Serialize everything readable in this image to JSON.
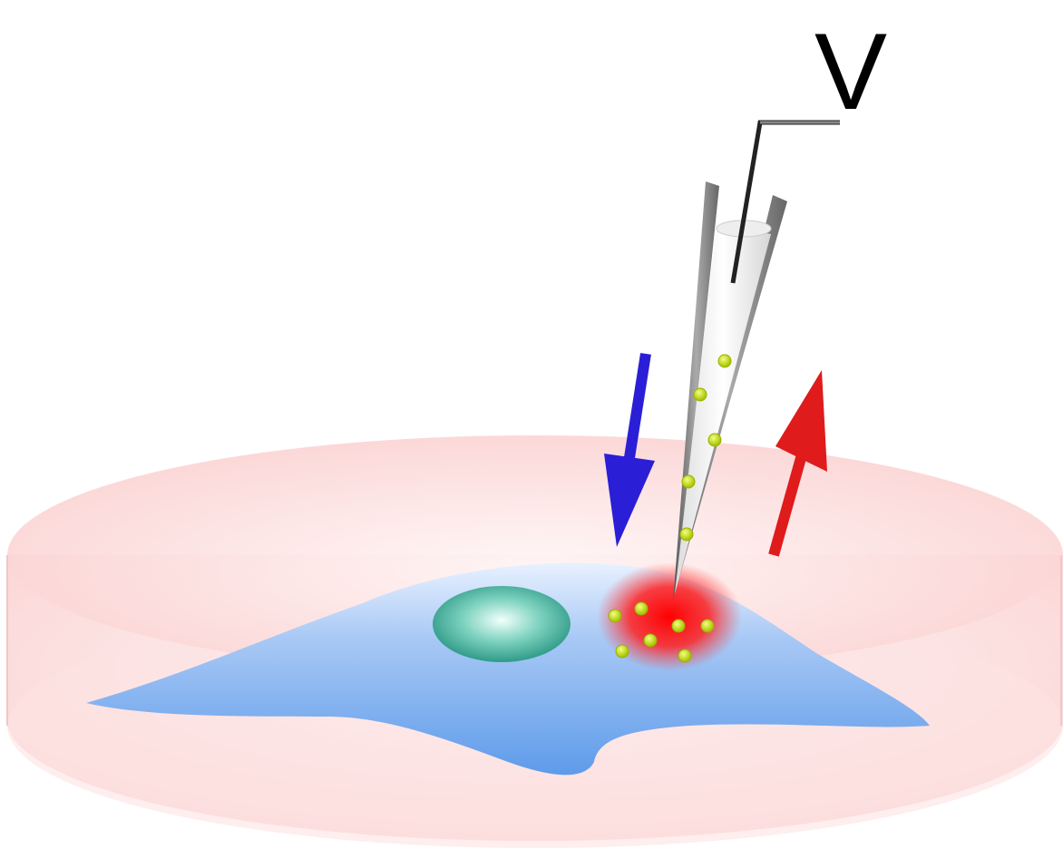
{
  "label": "V"
}
